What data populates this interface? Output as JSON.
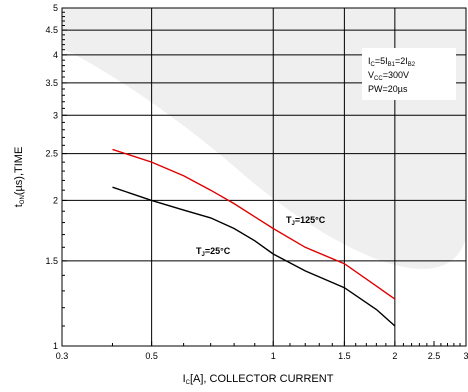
{
  "chart_data": {
    "type": "line",
    "xscale": "log",
    "yscale": "log",
    "xlim": [
      0.3,
      3
    ],
    "ylim": [
      1,
      5
    ],
    "grid": true,
    "x_ticks": [
      "0.3",
      "0.5",
      "1",
      "1.5",
      "2",
      "2.5",
      "3"
    ],
    "y_ticks": [
      "1",
      "1.5",
      "2",
      "2.5",
      "3",
      "3.5",
      "4",
      "4.5",
      "5"
    ],
    "xlabel": {
      "main": "I",
      "sub": "C",
      "rest": "[A], COLLECTOR CURRENT"
    },
    "ylabel": {
      "main": "t",
      "sub": "ON",
      "rest": "(µs),TIME"
    },
    "conditions": [
      {
        "parts": [
          [
            "I",
            ""
          ],
          [
            "C",
            "sub"
          ],
          [
            "=5I",
            ""
          ],
          [
            "B1",
            "sub"
          ],
          [
            "=2I",
            ""
          ],
          [
            "B2",
            "sub"
          ]
        ]
      },
      {
        "parts": [
          [
            "V",
            ""
          ],
          [
            "CC",
            "sub"
          ],
          [
            "=300V",
            ""
          ]
        ]
      },
      {
        "parts": [
          [
            "PW=20µs",
            ""
          ]
        ]
      }
    ],
    "series": [
      {
        "label": {
          "main": "T",
          "sub": "J",
          "rest": "=125°C"
        },
        "color": "#e00000",
        "x": [
          0.4,
          0.5,
          0.6,
          0.7,
          0.8,
          0.9,
          1.0,
          1.2,
          1.5,
          1.8,
          2.0
        ],
        "y": [
          2.55,
          2.4,
          2.25,
          2.1,
          1.97,
          1.85,
          1.75,
          1.6,
          1.48,
          1.33,
          1.25
        ]
      },
      {
        "label": {
          "main": "T",
          "sub": "J",
          "rest": "=25°C"
        },
        "color": "#000000",
        "x": [
          0.4,
          0.5,
          0.6,
          0.7,
          0.8,
          0.9,
          1.0,
          1.2,
          1.5,
          1.8,
          2.0
        ],
        "y": [
          2.13,
          2.0,
          1.91,
          1.84,
          1.75,
          1.65,
          1.55,
          1.43,
          1.32,
          1.19,
          1.1
        ]
      }
    ]
  }
}
